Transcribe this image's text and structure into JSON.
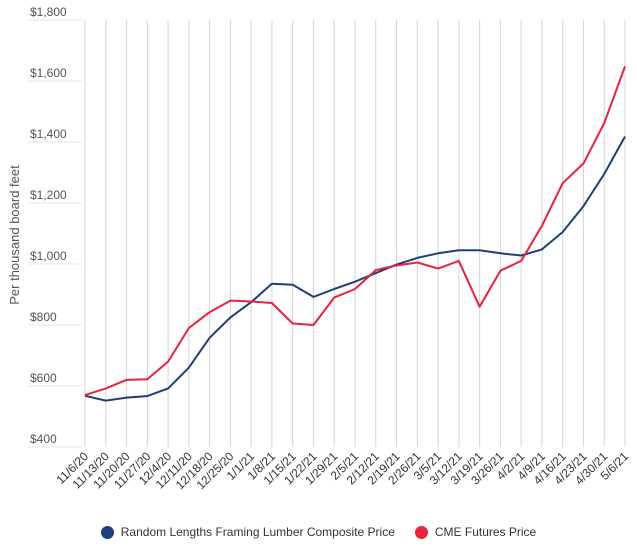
{
  "chart_data": {
    "type": "line",
    "title": "",
    "xlabel": "",
    "ylabel": "Per thousand board feet",
    "ylim": [
      400,
      1800
    ],
    "yticks": [
      400,
      600,
      800,
      1000,
      1200,
      1400,
      1600,
      1800
    ],
    "ytick_labels": [
      "$400",
      "$600",
      "$800",
      "$1,000",
      "$1,200",
      "$1,400",
      "$1,600",
      "$1,800"
    ],
    "grid": "vertical",
    "legend_position": "bottom",
    "x": [
      "11/6/20",
      "11/13/20",
      "11/20/20",
      "11/27/20",
      "12/4/20",
      "12/11/20",
      "12/18/20",
      "12/25/20",
      "1/1/21",
      "1/8/21",
      "1/15/21",
      "1/22/21",
      "1/29/21",
      "2/5/21",
      "2/12/21",
      "2/19/21",
      "2/26/21",
      "3/5/21",
      "3/12/21",
      "3/19/21",
      "3/26/21",
      "4/2/21",
      "4/9/21",
      "4/16/21",
      "4/23/21",
      "4/30/21",
      "5/6/21"
    ],
    "series": [
      {
        "name": "Random Lengths Framing Lumber Composite Price",
        "color": "#1f3f78",
        "values": [
          568,
          552,
          562,
          567,
          592,
          660,
          758,
          825,
          875,
          935,
          932,
          892,
          918,
          942,
          970,
          998,
          1020,
          1035,
          1045,
          1045,
          1035,
          1028,
          1048,
          1105,
          1190,
          1295,
          1418
        ]
      },
      {
        "name": "CME Futures Price",
        "color": "#e8223f",
        "values": [
          570,
          592,
          620,
          622,
          680,
          790,
          842,
          880,
          877,
          872,
          805,
          800,
          890,
          918,
          980,
          995,
          1005,
          985,
          1010,
          860,
          978,
          1010,
          1125,
          1265,
          1330,
          1462,
          1648
        ]
      }
    ]
  }
}
